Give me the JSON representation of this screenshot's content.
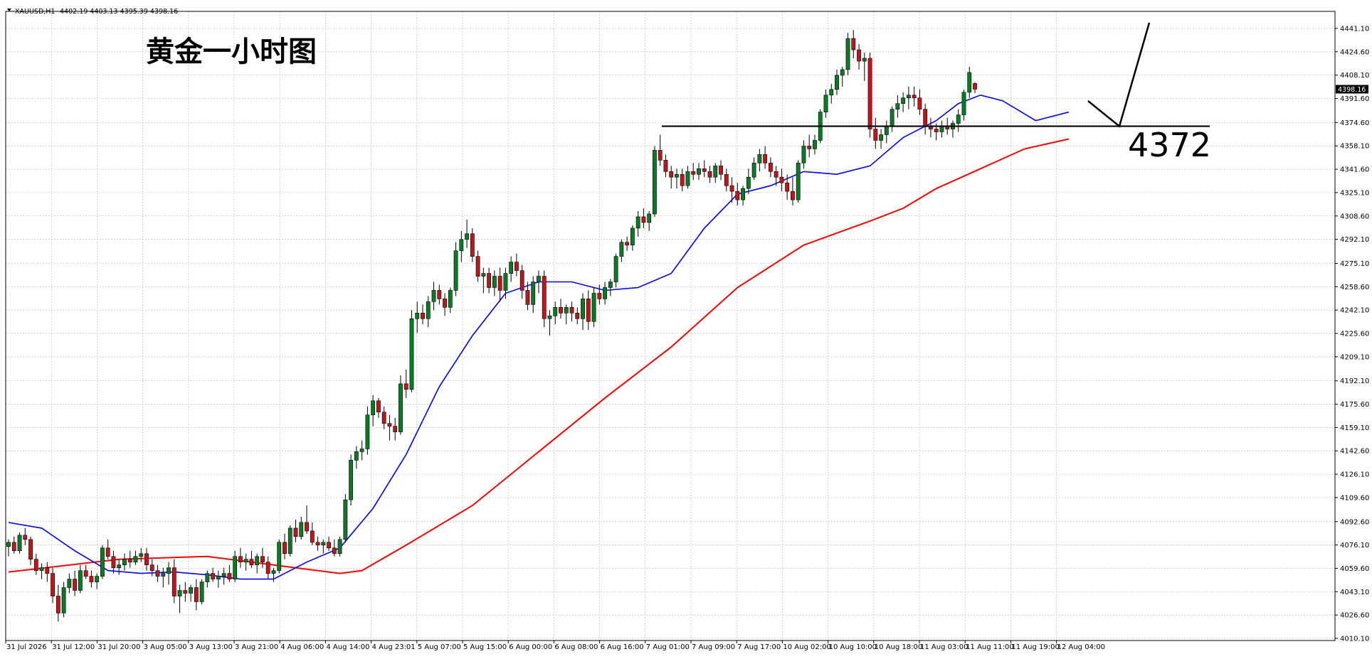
{
  "window": {
    "symbol_label": "XAUUSD,H1",
    "ohlc_label": "4402.19 4403.13 4395.39 4398.16"
  },
  "annotations": {
    "title": "黄金一小时图",
    "level_label": "4372"
  },
  "price_axis": {
    "ticks": [
      "4441.10",
      "4424.60",
      "4408.10",
      "4391.60",
      "4374.60",
      "4358.10",
      "4341.60",
      "4325.10",
      "4308.60",
      "4292.10",
      "4275.10",
      "4258.60",
      "4242.10",
      "4225.60",
      "4209.10",
      "4192.10",
      "4175.60",
      "4159.10",
      "4142.60",
      "4126.10",
      "4109.60",
      "4092.60",
      "4076.10",
      "4059.60",
      "4043.10",
      "4026.60",
      "4010.10"
    ],
    "current_price": "4398.16"
  },
  "time_axis": {
    "ticks": [
      "31 Jul 2026",
      "31 Jul 12:00",
      "31 Jul 20:00",
      "3 Aug 05:00",
      "3 Aug 13:00",
      "3 Aug 21:00",
      "4 Aug 06:00",
      "4 Aug 14:00",
      "4 Aug 23:01",
      "5 Aug 07:00",
      "5 Aug 15:00",
      "6 Aug 00:00",
      "6 Aug 08:00",
      "6 Aug 16:00",
      "7 Aug 01:00",
      "7 Aug 09:00",
      "7 Aug 17:00",
      "10 Aug 02:00",
      "10 Aug 10:00",
      "10 Aug 18:00",
      "11 Aug 03:00",
      "11 Aug 11:00",
      "11 Aug 19:00",
      "12 Aug 04:00"
    ]
  },
  "colors": {
    "bull_body": "#0b7a27",
    "bear_body": "#c0151b",
    "wick": "#000000",
    "ma_fast": "#0000ff",
    "ma_slow": "#ff0000",
    "grid": "#c0c0c0",
    "price_tag_bg": "#000000"
  },
  "chart_data": {
    "type": "candlestick",
    "symbol": "XAUUSD",
    "timeframe": "H1",
    "ylim": [
      4010.1,
      4441.1
    ],
    "grid": true,
    "horizontal_line": 4372,
    "candles": [
      [
        4075,
        4080,
        4068,
        4078
      ],
      [
        4078,
        4082,
        4070,
        4072
      ],
      [
        4072,
        4085,
        4070,
        4083
      ],
      [
        4083,
        4088,
        4076,
        4080
      ],
      [
        4080,
        4082,
        4062,
        4066
      ],
      [
        4066,
        4070,
        4055,
        4058
      ],
      [
        4058,
        4063,
        4052,
        4060
      ],
      [
        4060,
        4064,
        4050,
        4056
      ],
      [
        4056,
        4060,
        4035,
        4040
      ],
      [
        4040,
        4048,
        4022,
        4028
      ],
      [
        4028,
        4050,
        4025,
        4046
      ],
      [
        4046,
        4056,
        4042,
        4052
      ],
      [
        4052,
        4058,
        4040,
        4044
      ],
      [
        4044,
        4062,
        4042,
        4058
      ],
      [
        4058,
        4062,
        4052,
        4054
      ],
      [
        4054,
        4058,
        4046,
        4050
      ],
      [
        4050,
        4056,
        4045,
        4054
      ],
      [
        4054,
        4076,
        4052,
        4074
      ],
      [
        4074,
        4080,
        4066,
        4068
      ],
      [
        4068,
        4072,
        4056,
        4060
      ],
      [
        4060,
        4066,
        4055,
        4062
      ],
      [
        4062,
        4070,
        4058,
        4066
      ],
      [
        4066,
        4072,
        4060,
        4064
      ],
      [
        4064,
        4072,
        4062,
        4068
      ],
      [
        4068,
        4074,
        4064,
        4070
      ],
      [
        4070,
        4074,
        4058,
        4062
      ],
      [
        4062,
        4066,
        4054,
        4058
      ],
      [
        4058,
        4062,
        4050,
        4054
      ],
      [
        4054,
        4060,
        4046,
        4056
      ],
      [
        4056,
        4064,
        4048,
        4060
      ],
      [
        4060,
        4066,
        4035,
        4040
      ],
      [
        4040,
        4048,
        4028,
        4044
      ],
      [
        4044,
        4050,
        4036,
        4042
      ],
      [
        4042,
        4048,
        4036,
        4046
      ],
      [
        4046,
        4052,
        4030,
        4036
      ],
      [
        4036,
        4052,
        4034,
        4050
      ],
      [
        4050,
        4058,
        4046,
        4056
      ],
      [
        4056,
        4060,
        4050,
        4052
      ],
      [
        4052,
        4058,
        4046,
        4054
      ],
      [
        4054,
        4060,
        4048,
        4056
      ],
      [
        4056,
        4062,
        4050,
        4052
      ],
      [
        4052,
        4072,
        4050,
        4068
      ],
      [
        4068,
        4074,
        4060,
        4064
      ],
      [
        4064,
        4070,
        4058,
        4066
      ],
      [
        4066,
        4072,
        4060,
        4062
      ],
      [
        4062,
        4070,
        4056,
        4068
      ],
      [
        4068,
        4074,
        4060,
        4064
      ],
      [
        4064,
        4068,
        4052,
        4056
      ],
      [
        4056,
        4060,
        4050,
        4058
      ],
      [
        4058,
        4080,
        4056,
        4078
      ],
      [
        4078,
        4084,
        4066,
        4070
      ],
      [
        4070,
        4090,
        4068,
        4088
      ],
      [
        4088,
        4094,
        4078,
        4082
      ],
      [
        4082,
        4096,
        4080,
        4092
      ],
      [
        4092,
        4104,
        4084,
        4086
      ],
      [
        4086,
        4092,
        4076,
        4078
      ],
      [
        4078,
        4082,
        4072,
        4076
      ],
      [
        4076,
        4080,
        4070,
        4078
      ],
      [
        4078,
        4082,
        4072,
        4074
      ],
      [
        4074,
        4080,
        4068,
        4070
      ],
      [
        4070,
        4082,
        4068,
        4080
      ],
      [
        4080,
        4112,
        4078,
        4108
      ],
      [
        4108,
        4140,
        4104,
        4136
      ],
      [
        4136,
        4146,
        4130,
        4142
      ],
      [
        4142,
        4150,
        4136,
        4144
      ],
      [
        4144,
        4174,
        4140,
        4168
      ],
      [
        4168,
        4182,
        4160,
        4178
      ],
      [
        4178,
        4180,
        4166,
        4170
      ],
      [
        4170,
        4174,
        4158,
        4162
      ],
      [
        4162,
        4168,
        4150,
        4160
      ],
      [
        4160,
        4166,
        4150,
        4156
      ],
      [
        4156,
        4196,
        4154,
        4190
      ],
      [
        4190,
        4200,
        4180,
        4186
      ],
      [
        4186,
        4242,
        4184,
        4236
      ],
      [
        4236,
        4248,
        4226,
        4240
      ],
      [
        4240,
        4246,
        4232,
        4236
      ],
      [
        4236,
        4252,
        4230,
        4248
      ],
      [
        4248,
        4262,
        4242,
        4256
      ],
      [
        4256,
        4260,
        4246,
        4250
      ],
      [
        4250,
        4254,
        4238,
        4244
      ],
      [
        4244,
        4258,
        4240,
        4256
      ],
      [
        4256,
        4290,
        4252,
        4284
      ],
      [
        4284,
        4298,
        4276,
        4292
      ],
      [
        4292,
        4306,
        4286,
        4296
      ],
      [
        4296,
        4300,
        4276,
        4280
      ],
      [
        4280,
        4284,
        4262,
        4266
      ],
      [
        4266,
        4272,
        4254,
        4268
      ],
      [
        4268,
        4272,
        4254,
        4258
      ],
      [
        4258,
        4270,
        4252,
        4266
      ],
      [
        4266,
        4272,
        4248,
        4256
      ],
      [
        4256,
        4272,
        4250,
        4268
      ],
      [
        4268,
        4280,
        4262,
        4276
      ],
      [
        4276,
        4282,
        4266,
        4270
      ],
      [
        4270,
        4274,
        4250,
        4256
      ],
      [
        4256,
        4262,
        4242,
        4246
      ],
      [
        4246,
        4266,
        4240,
        4262
      ],
      [
        4262,
        4270,
        4254,
        4266
      ],
      [
        4266,
        4270,
        4230,
        4236
      ],
      [
        4236,
        4242,
        4224,
        4238
      ],
      [
        4238,
        4248,
        4232,
        4244
      ],
      [
        4244,
        4250,
        4236,
        4240
      ],
      [
        4240,
        4246,
        4232,
        4244
      ],
      [
        4244,
        4248,
        4234,
        4240
      ],
      [
        4240,
        4244,
        4232,
        4236
      ],
      [
        4236,
        4254,
        4228,
        4250
      ],
      [
        4250,
        4256,
        4228,
        4234
      ],
      [
        4234,
        4258,
        4230,
        4254
      ],
      [
        4254,
        4260,
        4246,
        4250
      ],
      [
        4250,
        4262,
        4246,
        4258
      ],
      [
        4258,
        4264,
        4252,
        4262
      ],
      [
        4262,
        4282,
        4258,
        4280
      ],
      [
        4280,
        4292,
        4276,
        4290
      ],
      [
        4290,
        4294,
        4284,
        4288
      ],
      [
        4288,
        4302,
        4284,
        4300
      ],
      [
        4300,
        4312,
        4294,
        4308
      ],
      [
        4308,
        4314,
        4300,
        4304
      ],
      [
        4304,
        4312,
        4298,
        4310
      ],
      [
        4310,
        4358,
        4308,
        4355
      ],
      [
        4355,
        4366,
        4344,
        4348
      ],
      [
        4348,
        4352,
        4336,
        4340
      ],
      [
        4340,
        4344,
        4328,
        4336
      ],
      [
        4336,
        4342,
        4328,
        4338
      ],
      [
        4338,
        4342,
        4326,
        4330
      ],
      [
        4330,
        4344,
        4328,
        4340
      ],
      [
        4340,
        4346,
        4334,
        4338
      ],
      [
        4338,
        4346,
        4334,
        4342
      ],
      [
        4342,
        4348,
        4336,
        4340
      ],
      [
        4340,
        4344,
        4332,
        4336
      ],
      [
        4336,
        4346,
        4332,
        4344
      ],
      [
        4344,
        4348,
        4334,
        4338
      ],
      [
        4338,
        4342,
        4326,
        4330
      ],
      [
        4330,
        4336,
        4318,
        4326
      ],
      [
        4326,
        4332,
        4316,
        4320
      ],
      [
        4320,
        4330,
        4316,
        4328
      ],
      [
        4328,
        4342,
        4324,
        4336
      ],
      [
        4336,
        4350,
        4334,
        4346
      ],
      [
        4346,
        4356,
        4340,
        4352
      ],
      [
        4352,
        4358,
        4342,
        4346
      ],
      [
        4346,
        4350,
        4336,
        4340
      ],
      [
        4340,
        4344,
        4330,
        4336
      ],
      [
        4336,
        4342,
        4326,
        4332
      ],
      [
        4332,
        4338,
        4320,
        4326
      ],
      [
        4326,
        4336,
        4316,
        4320
      ],
      [
        4320,
        4348,
        4318,
        4346
      ],
      [
        4346,
        4362,
        4342,
        4358
      ],
      [
        4358,
        4366,
        4350,
        4356
      ],
      [
        4356,
        4366,
        4352,
        4362
      ],
      [
        4362,
        4384,
        4360,
        4382
      ],
      [
        4382,
        4398,
        4378,
        4394
      ],
      [
        4394,
        4402,
        4388,
        4398
      ],
      [
        4398,
        4412,
        4394,
        4408
      ],
      [
        4408,
        4414,
        4400,
        4412
      ],
      [
        4412,
        4438,
        4408,
        4434
      ],
      [
        4434,
        4440,
        4420,
        4426
      ],
      [
        4426,
        4430,
        4412,
        4418
      ],
      [
        4418,
        4424,
        4404,
        4420
      ],
      [
        4420,
        4424,
        4364,
        4370
      ],
      [
        4370,
        4378,
        4356,
        4362
      ],
      [
        4362,
        4370,
        4356,
        4366
      ],
      [
        4366,
        4376,
        4360,
        4372
      ],
      [
        4372,
        4386,
        4368,
        4384
      ],
      [
        4384,
        4394,
        4378,
        4388
      ],
      [
        4388,
        4396,
        4382,
        4392
      ],
      [
        4392,
        4400,
        4384,
        4394
      ],
      [
        4394,
        4400,
        4386,
        4392
      ],
      [
        4392,
        4398,
        4380,
        4384
      ],
      [
        4384,
        4388,
        4366,
        4372
      ],
      [
        4372,
        4378,
        4364,
        4370
      ],
      [
        4370,
        4374,
        4362,
        4368
      ],
      [
        4368,
        4376,
        4364,
        4372
      ],
      [
        4372,
        4378,
        4366,
        4370
      ],
      [
        4370,
        4376,
        4364,
        4374
      ],
      [
        4374,
        4384,
        4368,
        4380
      ],
      [
        4380,
        4398,
        4376,
        4396
      ],
      [
        4396,
        4414,
        4392,
        4410
      ],
      [
        4402.19,
        4403.13,
        4395.39,
        4398.16
      ]
    ],
    "ma_fast": [
      [
        0,
        4092
      ],
      [
        6,
        4088
      ],
      [
        12,
        4072
      ],
      [
        18,
        4058
      ],
      [
        24,
        4056
      ],
      [
        30,
        4057
      ],
      [
        36,
        4055
      ],
      [
        42,
        4052
      ],
      [
        48,
        4052
      ],
      [
        54,
        4064
      ],
      [
        60,
        4074
      ],
      [
        66,
        4102
      ],
      [
        72,
        4140
      ],
      [
        78,
        4188
      ],
      [
        84,
        4224
      ],
      [
        90,
        4254
      ],
      [
        96,
        4262
      ],
      [
        102,
        4262
      ],
      [
        108,
        4256
      ],
      [
        114,
        4258
      ],
      [
        120,
        4268
      ],
      [
        126,
        4300
      ],
      [
        132,
        4324
      ],
      [
        138,
        4330
      ],
      [
        144,
        4340
      ],
      [
        150,
        4338
      ],
      [
        156,
        4344
      ],
      [
        162,
        4364
      ],
      [
        168,
        4376
      ],
      [
        172,
        4388
      ],
      [
        176,
        4394
      ],
      [
        180,
        4390
      ],
      [
        186,
        4376
      ],
      [
        192,
        4382
      ]
    ],
    "ma_slow": [
      [
        0,
        4057
      ],
      [
        20,
        4066
      ],
      [
        36,
        4068
      ],
      [
        48,
        4062
      ],
      [
        60,
        4056
      ],
      [
        64,
        4058
      ],
      [
        72,
        4076
      ],
      [
        84,
        4104
      ],
      [
        96,
        4142
      ],
      [
        108,
        4180
      ],
      [
        120,
        4216
      ],
      [
        132,
        4258
      ],
      [
        144,
        4288
      ],
      [
        156,
        4305
      ],
      [
        162,
        4314
      ],
      [
        168,
        4328
      ],
      [
        176,
        4342
      ],
      [
        184,
        4356
      ],
      [
        192,
        4363
      ]
    ]
  }
}
